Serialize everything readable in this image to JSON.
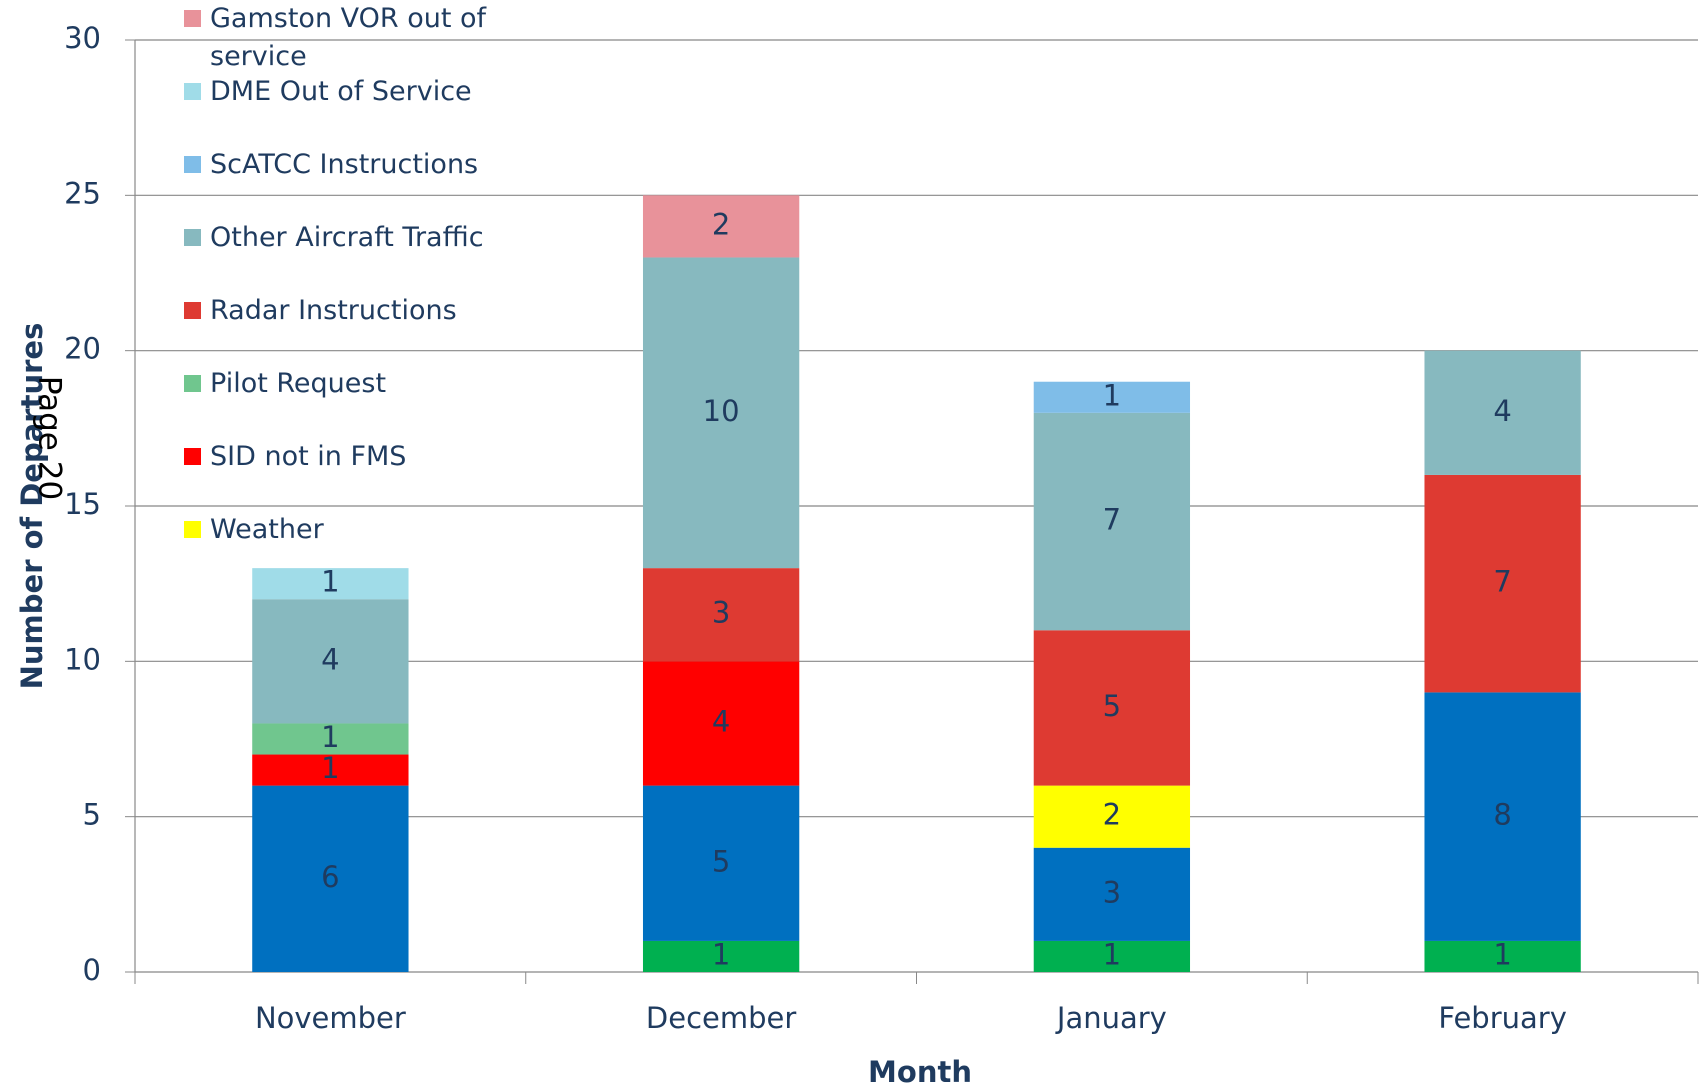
{
  "chart_data": {
    "type": "stacked_bar",
    "page_label": "Page 20",
    "x_label": "Month",
    "y_label": "Number of Departures",
    "categories": [
      "November",
      "December",
      "January",
      "February"
    ],
    "ylim": [
      0,
      30
    ],
    "yticks": [
      0,
      5,
      10,
      15,
      20,
      25,
      30
    ],
    "grid": true,
    "series": [
      {
        "color": "#00b050",
        "values": [
          null,
          1,
          1,
          1
        ]
      },
      {
        "color": "#0070c0",
        "values": [
          6,
          5,
          3,
          8
        ]
      },
      {
        "name": "Weather",
        "color": "#ffff00",
        "values": [
          null,
          null,
          2,
          null
        ]
      },
      {
        "name": "SID not in FMS",
        "color": "#ff0000",
        "values": [
          1,
          4,
          null,
          null
        ]
      },
      {
        "name": "Pilot Request",
        "color": "#70c68e",
        "values": [
          1,
          null,
          null,
          null
        ]
      },
      {
        "name": "Radar Instructions",
        "color": "#de3a32",
        "values": [
          null,
          3,
          5,
          7
        ]
      },
      {
        "name": "Other Aircraft Traffic",
        "color": "#87b9bf",
        "values": [
          4,
          10,
          7,
          4
        ]
      },
      {
        "name": "ScATCC Instructions",
        "color": "#7fbde8",
        "values": [
          null,
          null,
          1,
          null
        ]
      },
      {
        "name": "DME Out of Service",
        "color": "#a0dce8",
        "values": [
          1,
          null,
          null,
          null
        ]
      },
      {
        "name": "Gamston VOR out of service",
        "color": "#e8929a",
        "values": [
          null,
          2,
          null,
          null
        ]
      }
    ]
  }
}
